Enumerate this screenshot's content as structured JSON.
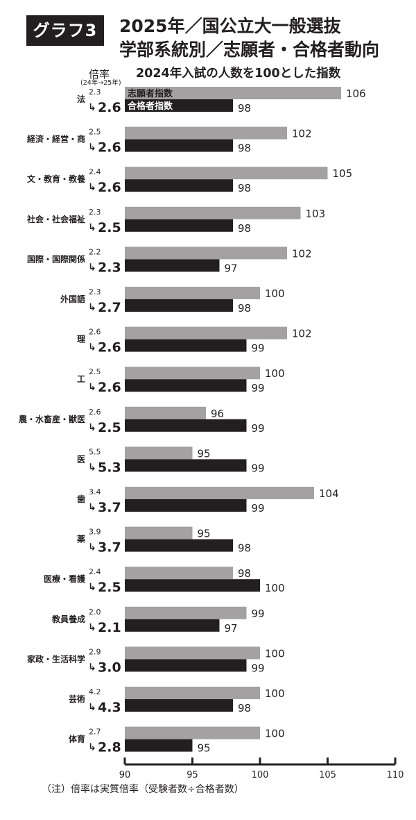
{
  "header": {
    "badge": "グラフ3",
    "title_line1": "2025年／国公立大一般選抜",
    "title_line2": "学部系統別／志願者・合格者動向",
    "rate_label": "倍率",
    "rate_sub": "(24年→25年)",
    "subtitle": "2024年入試の人数を100とした指数"
  },
  "note": "（注）倍率は実質倍率（受験者数÷合格者数）",
  "colors": {
    "applicants": "#a3a1a1",
    "passers": "#231f20",
    "arrow_icon": "↳"
  },
  "chart_data": {
    "type": "bar",
    "orientation": "horizontal",
    "series": [
      {
        "name": "志願者指数",
        "values": [
          106,
          102,
          105,
          103,
          102,
          100,
          102,
          100,
          96,
          95,
          104,
          95,
          98,
          99,
          100,
          100,
          100
        ]
      },
      {
        "name": "合格者指数",
        "values": [
          98,
          98,
          98,
          98,
          97,
          98,
          99,
          99,
          99,
          99,
          99,
          98,
          100,
          97,
          99,
          98,
          95
        ]
      }
    ],
    "categories": [
      "法",
      "経済・経営・商",
      "文・教育・教養",
      "社会・社会福祉",
      "国際・国際関係",
      "外国語",
      "理",
      "工",
      "農・水畜産・獣医",
      "医",
      "歯",
      "薬",
      "医療・看護",
      "教員養成",
      "家政・生活科学",
      "芸術",
      "体育"
    ],
    "rate_2024": [
      "2.3",
      "2.5",
      "2.4",
      "2.3",
      "2.2",
      "2.3",
      "2.6",
      "2.5",
      "2.6",
      "5.5",
      "3.4",
      "3.9",
      "2.4",
      "2.0",
      "2.9",
      "4.2",
      "2.7"
    ],
    "rate_2025": [
      "2.6",
      "2.6",
      "2.6",
      "2.5",
      "2.3",
      "2.7",
      "2.6",
      "2.6",
      "2.5",
      "5.3",
      "3.7",
      "3.7",
      "2.5",
      "2.1",
      "3.0",
      "4.3",
      "2.8"
    ],
    "xlim": [
      90,
      110
    ],
    "xticks": [
      "90",
      "95",
      "100",
      "105",
      "110"
    ],
    "legend_position": "inside-first-bars"
  }
}
